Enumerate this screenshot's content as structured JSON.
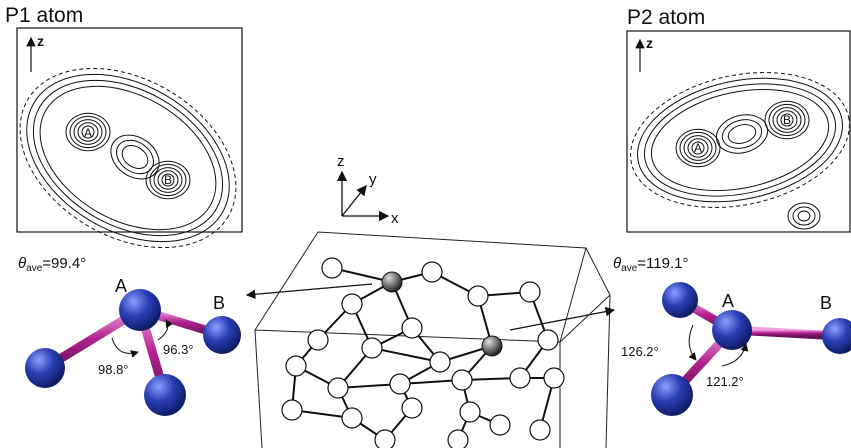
{
  "panels": [
    {
      "title": "P1 atom",
      "axis": "z",
      "site_a": "A",
      "site_b": "B",
      "theta": {
        "symbol": "θ",
        "subscript": "ave",
        "text": "=99.4°"
      },
      "atom_a": "A",
      "atom_b": "B",
      "angles": [
        "98.8°",
        "96.3°"
      ]
    },
    {
      "title": "P2 atom",
      "axis": "z",
      "site_a": "A",
      "site_b": "B",
      "theta": {
        "symbol": "θ",
        "subscript": "ave",
        "text": "=119.1°"
      },
      "atom_a": "A",
      "atom_b": "B",
      "angles": [
        "126.2°",
        "121.2°"
      ]
    }
  ],
  "axes": {
    "z": "z",
    "y": "y",
    "x": "x"
  }
}
